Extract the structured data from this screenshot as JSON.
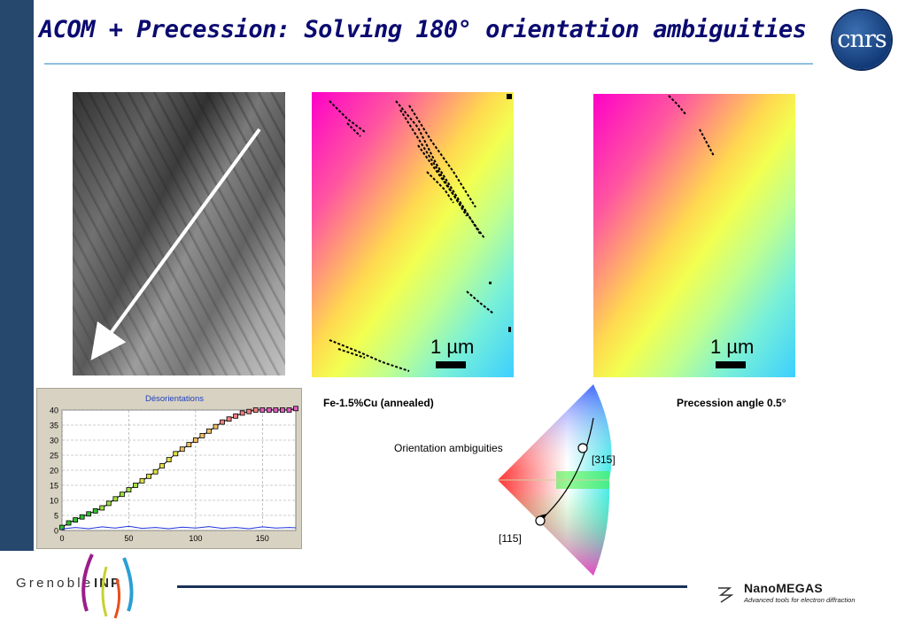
{
  "slide": {
    "title": "ACOM + Precession: Solving 180° orientation ambiguities"
  },
  "logos": {
    "cnrs_text": "cnrs",
    "grenoble_text": "Grenoble",
    "inp_text": "INP",
    "nanomegas_name": "NanoMEGAS",
    "nanomegas_tagline": "Advanced tools for electron diffraction"
  },
  "maps": {
    "scalebar_label": "1 µm",
    "caption_left": "Fe-1.5%Cu (annealed)",
    "caption_right": "Precession angle  0.5°"
  },
  "triangle": {
    "note": "Orientation ambiguities",
    "label_top": "[315]",
    "label_bottom": "[115]"
  },
  "colors": {
    "sidebar": "#27486d",
    "title": "#0a0a70",
    "chart_bg": "#d8d2c2",
    "misorientation": "#000000",
    "baseline": "#2233dd"
  },
  "chart_data": {
    "type": "line",
    "title": "Désorientations",
    "xlabel": "",
    "ylabel": "",
    "xlim": [
      0,
      175
    ],
    "ylim": [
      0,
      40
    ],
    "x_ticks": [
      0,
      50,
      100,
      150
    ],
    "y_ticks": [
      0,
      5,
      10,
      15,
      20,
      25,
      30,
      35,
      40
    ],
    "grid": true,
    "series": [
      {
        "values_x": [
          0,
          5,
          10,
          15,
          20,
          25,
          30,
          35,
          40,
          45,
          50,
          55,
          60,
          65,
          70,
          75,
          80,
          85,
          90,
          95,
          100,
          105,
          110,
          115,
          120,
          125,
          130,
          135,
          140,
          145,
          150,
          155,
          160,
          165,
          170,
          175
        ],
        "values_y": [
          1,
          2.5,
          3.5,
          4.5,
          5.5,
          6.5,
          7.5,
          9,
          10.5,
          12,
          13.5,
          15,
          16.5,
          18,
          19.5,
          21.5,
          23.5,
          25.5,
          27,
          28.5,
          30,
          31.5,
          33,
          34.5,
          36,
          37,
          38,
          39,
          39.5,
          40,
          40,
          40,
          40,
          40,
          40,
          40.5
        ]
      },
      {
        "values_x": [
          0,
          10,
          20,
          30,
          40,
          50,
          60,
          70,
          80,
          90,
          100,
          110,
          120,
          130,
          140,
          150,
          160,
          170,
          175
        ],
        "values_y": [
          0.5,
          1,
          0.6,
          1.2,
          0.8,
          1.4,
          0.7,
          1,
          0.6,
          1.1,
          0.8,
          1.3,
          0.7,
          1,
          0.6,
          1.2,
          0.8,
          1,
          0.9
        ]
      }
    ]
  }
}
